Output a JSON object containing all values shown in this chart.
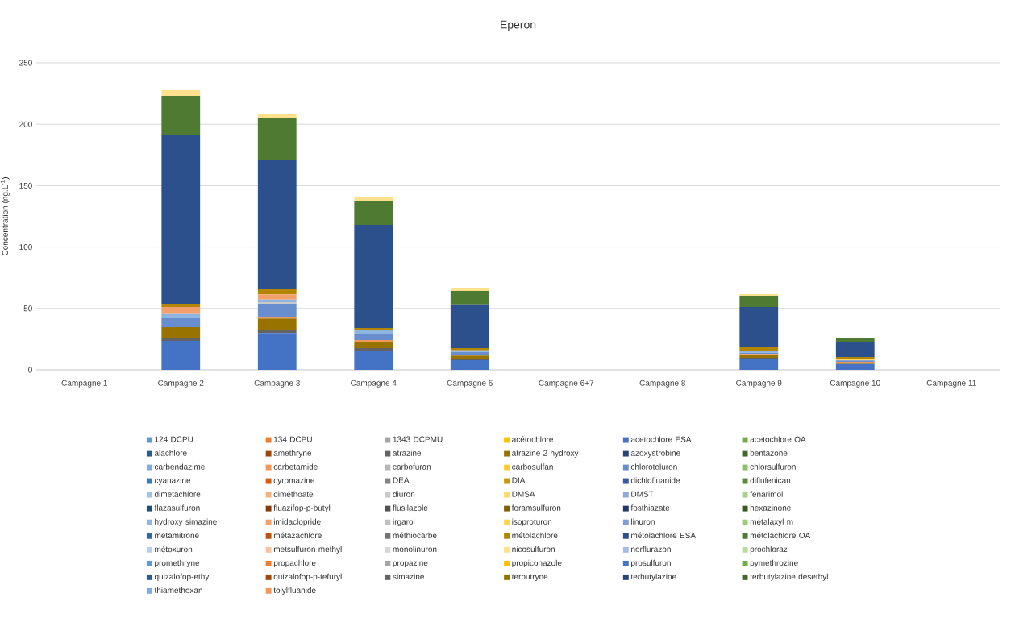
{
  "chart_data": {
    "type": "bar",
    "stacked": true,
    "title": "Eperon",
    "ylabel": "Concentration (ng.L$^{-1}$)",
    "categories": [
      "Campagne 1",
      "Campagne 2",
      "Campagne 3",
      "Campagne 4",
      "Campagne 5",
      "Campagne 6+7",
      "Campagne 8",
      "Campagne 9",
      "Campagne 10",
      "Campagne 11"
    ],
    "ylim": [
      0,
      250
    ],
    "yticks": [
      0,
      50,
      100,
      150,
      200,
      250
    ],
    "grid": "y",
    "legend": "bottom",
    "series": [
      {
        "name": "124 DCPU",
        "color": "#5b9bd5",
        "values": [
          null,
          null,
          null,
          null,
          null,
          null,
          null,
          null,
          null,
          null
        ]
      },
      {
        "name": "134 DCPU",
        "color": "#ed7d31",
        "values": [
          null,
          null,
          null,
          null,
          null,
          null,
          null,
          null,
          null,
          null
        ]
      },
      {
        "name": "1343 DCPMU",
        "color": "#a5a5a5",
        "values": [
          null,
          null,
          null,
          null,
          null,
          null,
          null,
          null,
          null,
          null
        ]
      },
      {
        "name": "acétochlore",
        "color": "#ffc000",
        "values": [
          null,
          null,
          null,
          null,
          null,
          null,
          null,
          null,
          null,
          null
        ]
      },
      {
        "name": "acetochlore ESA",
        "color": "#4472c4",
        "values": [
          null,
          23.6,
          30.0,
          15.1,
          7.9,
          null,
          null,
          8.5,
          4.8,
          null
        ]
      },
      {
        "name": "acetochlore OA",
        "color": "#70ad47",
        "values": [
          null,
          null,
          null,
          null,
          null,
          null,
          null,
          null,
          null,
          null
        ]
      },
      {
        "name": "alachlore",
        "color": "#255e91",
        "values": [
          null,
          null,
          null,
          null,
          null,
          null,
          null,
          null,
          null,
          null
        ]
      },
      {
        "name": "amethryne",
        "color": "#9e480e",
        "values": [
          null,
          null,
          null,
          null,
          null,
          null,
          null,
          null,
          null,
          null
        ]
      },
      {
        "name": "atrazine",
        "color": "#636363",
        "values": [
          null,
          2.0,
          2.2,
          2.6,
          0.7,
          null,
          null,
          1.3,
          null,
          null
        ]
      },
      {
        "name": "atrazine 2 hydroxy",
        "color": "#997300",
        "values": [
          null,
          9.2,
          9.6,
          5.3,
          3.0,
          null,
          null,
          2.2,
          1.1,
          null
        ]
      },
      {
        "name": "azoxystrobine",
        "color": "#264478",
        "values": [
          null,
          null,
          null,
          null,
          null,
          null,
          null,
          null,
          null,
          null
        ]
      },
      {
        "name": "bentazone",
        "color": "#43682b",
        "values": [
          null,
          null,
          null,
          null,
          null,
          null,
          null,
          null,
          null,
          null
        ]
      },
      {
        "name": "carbendazime",
        "color": "#7cafdd",
        "values": [
          null,
          null,
          null,
          null,
          null,
          null,
          null,
          null,
          null,
          null
        ]
      },
      {
        "name": "carbetamide",
        "color": "#f1975a",
        "values": [
          null,
          null,
          0.9,
          1.3,
          null,
          null,
          null,
          0.9,
          0.7,
          null
        ]
      },
      {
        "name": "carbofuran",
        "color": "#b7b7b7",
        "values": [
          null,
          null,
          null,
          null,
          null,
          null,
          null,
          null,
          null,
          null
        ]
      },
      {
        "name": "carbosulfan",
        "color": "#ffcd33",
        "values": [
          null,
          null,
          null,
          null,
          null,
          null,
          null,
          null,
          null,
          null
        ]
      },
      {
        "name": "chlorotoluron",
        "color": "#698ed0",
        "values": [
          null,
          7.2,
          11.1,
          5.2,
          3.0,
          null,
          null,
          1.1,
          1.1,
          null
        ]
      },
      {
        "name": "chlorsulfuron",
        "color": "#8cc168",
        "values": [
          null,
          null,
          null,
          null,
          null,
          null,
          null,
          null,
          null,
          null
        ]
      },
      {
        "name": "cyanazine",
        "color": "#327dc2",
        "values": [
          null,
          null,
          null,
          null,
          null,
          null,
          null,
          null,
          null,
          null
        ]
      },
      {
        "name": "cyromazine",
        "color": "#d26012",
        "values": [
          null,
          null,
          null,
          null,
          null,
          null,
          null,
          null,
          null,
          null
        ]
      },
      {
        "name": "DEA",
        "color": "#848484",
        "values": [
          null,
          null,
          null,
          null,
          null,
          null,
          null,
          null,
          null,
          null
        ]
      },
      {
        "name": "DIA",
        "color": "#cc9a00",
        "values": [
          null,
          null,
          null,
          null,
          null,
          null,
          null,
          null,
          null,
          null
        ]
      },
      {
        "name": "dichlofluanide",
        "color": "#335aa1",
        "values": [
          null,
          null,
          null,
          null,
          null,
          null,
          null,
          null,
          null,
          null
        ]
      },
      {
        "name": "diflufenican",
        "color": "#5a8a39",
        "values": [
          null,
          null,
          null,
          null,
          null,
          null,
          null,
          null,
          null,
          null
        ]
      },
      {
        "name": "dimetachlore",
        "color": "#9dc3e6",
        "values": [
          null,
          null,
          null,
          null,
          null,
          null,
          null,
          null,
          null,
          null
        ]
      },
      {
        "name": "diméthoate",
        "color": "#f4b183",
        "values": [
          null,
          null,
          null,
          null,
          null,
          null,
          null,
          null,
          null,
          null
        ]
      },
      {
        "name": "diuron",
        "color": "#c9c9c9",
        "values": [
          null,
          null,
          1.3,
          null,
          null,
          null,
          null,
          null,
          null,
          null
        ]
      },
      {
        "name": "DMSA",
        "color": "#ffd966",
        "values": [
          null,
          null,
          null,
          null,
          null,
          null,
          null,
          null,
          1.3,
          null
        ]
      },
      {
        "name": "DMST",
        "color": "#8faadc",
        "values": [
          null,
          null,
          null,
          null,
          null,
          null,
          null,
          null,
          null,
          null
        ]
      },
      {
        "name": "fénarimol",
        "color": "#a9d18e",
        "values": [
          null,
          null,
          null,
          null,
          null,
          null,
          null,
          null,
          null,
          null
        ]
      },
      {
        "name": "flazasulfuron",
        "color": "#1f4e79",
        "values": [
          null,
          null,
          null,
          null,
          null,
          null,
          null,
          null,
          null,
          null
        ]
      },
      {
        "name": "fluazifop-p-butyl",
        "color": "#843c0c",
        "values": [
          null,
          null,
          null,
          null,
          null,
          null,
          null,
          null,
          null,
          null
        ]
      },
      {
        "name": "flusilazole",
        "color": "#525252",
        "values": [
          null,
          null,
          null,
          null,
          null,
          null,
          null,
          null,
          null,
          null
        ]
      },
      {
        "name": "foramsulfuron",
        "color": "#7f6000",
        "values": [
          null,
          null,
          null,
          null,
          null,
          null,
          null,
          null,
          null,
          null
        ]
      },
      {
        "name": "fosthiazate",
        "color": "#203864",
        "values": [
          null,
          null,
          null,
          null,
          null,
          null,
          null,
          null,
          null,
          null
        ]
      },
      {
        "name": "hexazinone",
        "color": "#385723",
        "values": [
          null,
          null,
          null,
          null,
          null,
          null,
          null,
          null,
          null,
          null
        ]
      },
      {
        "name": "hydroxy simazine",
        "color": "#8db5e0",
        "values": [
          null,
          3.5,
          2.2,
          2.7,
          1.3,
          null,
          null,
          1.1,
          null,
          null
        ]
      },
      {
        "name": "imidaclopride",
        "color": "#f3a16c",
        "values": [
          null,
          5.7,
          4.2,
          null,
          null,
          null,
          null,
          null,
          null,
          null
        ]
      },
      {
        "name": "irgarol",
        "color": "#c0c0c0",
        "values": [
          null,
          null,
          null,
          null,
          null,
          null,
          null,
          null,
          null,
          null
        ]
      },
      {
        "name": "isoproturon",
        "color": "#ffd54f",
        "values": [
          null,
          null,
          null,
          null,
          null,
          null,
          null,
          null,
          null,
          null
        ]
      },
      {
        "name": "linuron",
        "color": "#809ed9",
        "values": [
          null,
          null,
          null,
          null,
          null,
          null,
          null,
          null,
          null,
          null
        ]
      },
      {
        "name": "métalaxyl m",
        "color": "#9dcb7d",
        "values": [
          null,
          null,
          null,
          null,
          null,
          null,
          null,
          null,
          null,
          null
        ]
      },
      {
        "name": "métamitrone",
        "color": "#2c6ca8",
        "values": [
          null,
          null,
          null,
          null,
          null,
          null,
          null,
          null,
          null,
          null
        ]
      },
      {
        "name": "métazachlore",
        "color": "#b85410",
        "values": [
          null,
          null,
          null,
          null,
          null,
          null,
          null,
          null,
          null,
          null
        ]
      },
      {
        "name": "méthiocarbe",
        "color": "#747474",
        "values": [
          null,
          null,
          null,
          null,
          null,
          null,
          null,
          null,
          null,
          null
        ]
      },
      {
        "name": "métolachlore",
        "color": "#b38600",
        "values": [
          null,
          2.6,
          4.1,
          1.9,
          1.8,
          null,
          null,
          3.3,
          1.5,
          null
        ]
      },
      {
        "name": "métolachlore ESA",
        "color": "#2c508c",
        "values": [
          null,
          137.2,
          105.0,
          84.0,
          35.6,
          null,
          null,
          32.8,
          11.8,
          null
        ]
      },
      {
        "name": "métolachlore OA",
        "color": "#4f7a32",
        "values": [
          null,
          32.1,
          34.1,
          19.7,
          11.0,
          null,
          null,
          9.2,
          3.9,
          null
        ]
      },
      {
        "name": "métoxuron",
        "color": "#b4d2ee",
        "values": [
          null,
          null,
          null,
          null,
          null,
          null,
          null,
          null,
          null,
          null
        ]
      },
      {
        "name": "metsulfuron-methyl",
        "color": "#f7c3a0",
        "values": [
          null,
          null,
          null,
          null,
          null,
          null,
          null,
          null,
          null,
          null
        ]
      },
      {
        "name": "monolinuron",
        "color": "#d6d6d6",
        "values": [
          null,
          null,
          null,
          null,
          null,
          null,
          null,
          null,
          null,
          null
        ]
      },
      {
        "name": "nicosulfuron",
        "color": "#ffe08c",
        "values": [
          null,
          4.6,
          4.0,
          3.3,
          2.2,
          null,
          null,
          1.3,
          null,
          null
        ]
      },
      {
        "name": "norflurazon",
        "color": "#a4bbe6",
        "values": [
          null,
          null,
          null,
          null,
          null,
          null,
          null,
          null,
          null,
          null
        ]
      },
      {
        "name": "prochloraz",
        "color": "#b8dca0",
        "values": [
          null,
          null,
          null,
          null,
          null,
          null,
          null,
          null,
          null,
          null
        ]
      },
      {
        "name": "promethryne",
        "color": "#5b9bd5",
        "values": [
          null,
          null,
          null,
          null,
          null,
          null,
          null,
          null,
          null,
          null
        ]
      },
      {
        "name": "propachlore",
        "color": "#ed7d31",
        "values": [
          null,
          null,
          null,
          null,
          null,
          null,
          null,
          null,
          null,
          null
        ]
      },
      {
        "name": "propazine",
        "color": "#a5a5a5",
        "values": [
          null,
          null,
          null,
          null,
          null,
          null,
          null,
          null,
          null,
          null
        ]
      },
      {
        "name": "propiconazole",
        "color": "#ffc000",
        "values": [
          null,
          null,
          null,
          null,
          null,
          null,
          null,
          null,
          null,
          null
        ]
      },
      {
        "name": "prosulfuron",
        "color": "#4472c4",
        "values": [
          null,
          null,
          null,
          null,
          null,
          null,
          null,
          null,
          null,
          null
        ]
      },
      {
        "name": "pymethrozine",
        "color": "#70ad47",
        "values": [
          null,
          null,
          null,
          null,
          null,
          null,
          null,
          null,
          null,
          null
        ]
      },
      {
        "name": "quizalofop-ethyl",
        "color": "#255e91",
        "values": [
          null,
          null,
          null,
          null,
          null,
          null,
          null,
          null,
          null,
          null
        ]
      },
      {
        "name": "quizalofop-p-tefuryl",
        "color": "#9e480e",
        "values": [
          null,
          null,
          null,
          null,
          null,
          null,
          null,
          null,
          null,
          null
        ]
      },
      {
        "name": "simazine",
        "color": "#636363",
        "values": [
          null,
          null,
          null,
          null,
          null,
          null,
          null,
          null,
          null,
          null
        ]
      },
      {
        "name": "terbutryne",
        "color": "#997300",
        "values": [
          null,
          null,
          null,
          null,
          null,
          null,
          null,
          null,
          null,
          null
        ]
      },
      {
        "name": "terbutylazine",
        "color": "#264478",
        "values": [
          null,
          null,
          null,
          null,
          null,
          null,
          null,
          null,
          null,
          null
        ]
      },
      {
        "name": "terbutylazine desethyl",
        "color": "#43682b",
        "values": [
          null,
          null,
          null,
          null,
          null,
          null,
          null,
          null,
          null,
          null
        ]
      },
      {
        "name": "thiamethoxan",
        "color": "#7cafdd",
        "values": [
          null,
          null,
          null,
          null,
          null,
          null,
          null,
          null,
          null,
          null
        ]
      },
      {
        "name": "tolylfluanide",
        "color": "#f1975a",
        "values": [
          null,
          null,
          null,
          null,
          null,
          null,
          null,
          null,
          null,
          null
        ]
      }
    ]
  }
}
